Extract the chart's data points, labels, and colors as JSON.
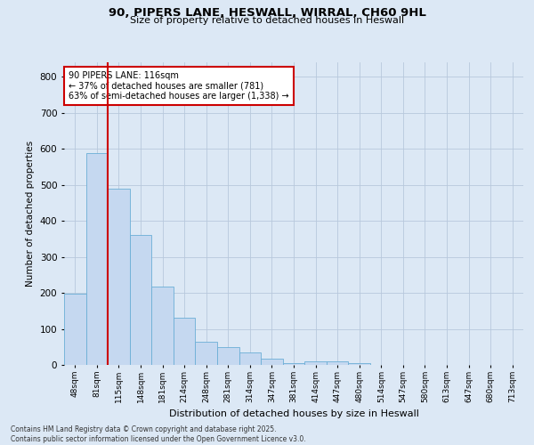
{
  "title": "90, PIPERS LANE, HESWALL, WIRRAL, CH60 9HL",
  "subtitle": "Size of property relative to detached houses in Heswall",
  "xlabel": "Distribution of detached houses by size in Heswall",
  "ylabel": "Number of detached properties",
  "categories": [
    "48sqm",
    "81sqm",
    "115sqm",
    "148sqm",
    "181sqm",
    "214sqm",
    "248sqm",
    "281sqm",
    "314sqm",
    "347sqm",
    "381sqm",
    "414sqm",
    "447sqm",
    "480sqm",
    "514sqm",
    "547sqm",
    "580sqm",
    "613sqm",
    "647sqm",
    "680sqm",
    "713sqm"
  ],
  "values": [
    197,
    588,
    490,
    360,
    218,
    130,
    65,
    50,
    35,
    18,
    5,
    10,
    10,
    5,
    0,
    0,
    0,
    0,
    0,
    0,
    0
  ],
  "bar_color": "#c5d8f0",
  "bar_edge_color": "#6baed6",
  "property_label": "90 PIPERS LANE: 116sqm",
  "pct_smaller": 37,
  "n_smaller": 781,
  "pct_larger": 63,
  "n_larger": 1338,
  "vline_index": 2,
  "vline_color": "#cc0000",
  "annotation_box_edge_color": "#cc0000",
  "bg_color": "#dce8f5",
  "grid_color": "#b8c8dc",
  "ylim": [
    0,
    840
  ],
  "yticks": [
    0,
    100,
    200,
    300,
    400,
    500,
    600,
    700,
    800
  ],
  "footnote1": "Contains HM Land Registry data © Crown copyright and database right 2025.",
  "footnote2": "Contains public sector information licensed under the Open Government Licence v3.0."
}
